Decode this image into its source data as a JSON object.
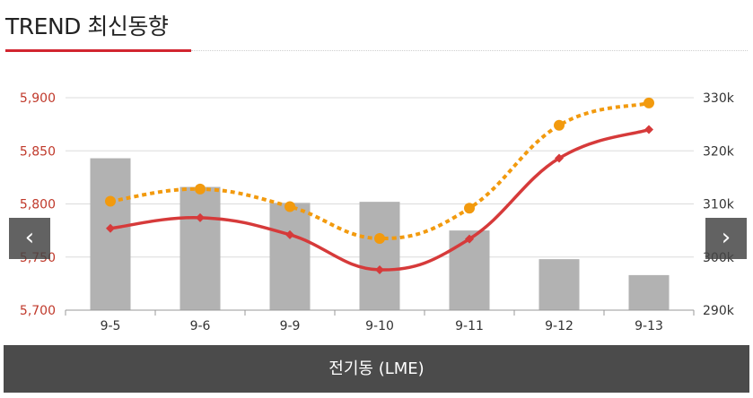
{
  "header": {
    "title": "TREND 최신동향"
  },
  "nav": {
    "prev_label": "‹",
    "next_label": "›"
  },
  "footer": {
    "label": "전기동 (LME)"
  },
  "colors": {
    "accent": "#d2252f",
    "bars": "#b2b2b2",
    "line_right": "#f29a0e",
    "footer_bg": "#4b4b4b"
  },
  "chart_data": {
    "type": "bar",
    "categories": [
      "9-5",
      "9-6",
      "9-9",
      "9-10",
      "9-11",
      "9-12",
      "9-13"
    ],
    "left_axis": {
      "ticks": [
        "5,700",
        "5,750",
        "5,800",
        "5,850",
        "5,900"
      ],
      "ylim": [
        5700,
        5900
      ]
    },
    "right_axis": {
      "ticks": [
        "290k",
        "300k",
        "310k",
        "320k",
        "330k"
      ],
      "ylim": [
        290000,
        330000
      ]
    },
    "series": [
      {
        "kind": "bar",
        "axis": "left",
        "color": "#b2b2b2",
        "values": [
          5843,
          5816,
          5801,
          5802,
          5775,
          5748,
          5733
        ]
      },
      {
        "kind": "line",
        "axis": "left",
        "color": "#d63a3a",
        "marker": "diamond",
        "values": [
          5777,
          5787,
          5771,
          5738,
          5767,
          5843,
          5870
        ]
      },
      {
        "kind": "line",
        "axis": "right",
        "color": "#f29a0e",
        "marker": "circle",
        "dashed": true,
        "values": [
          310500,
          312800,
          309500,
          303500,
          309200,
          324800,
          329000
        ]
      }
    ],
    "grid": true,
    "legend": "none"
  }
}
